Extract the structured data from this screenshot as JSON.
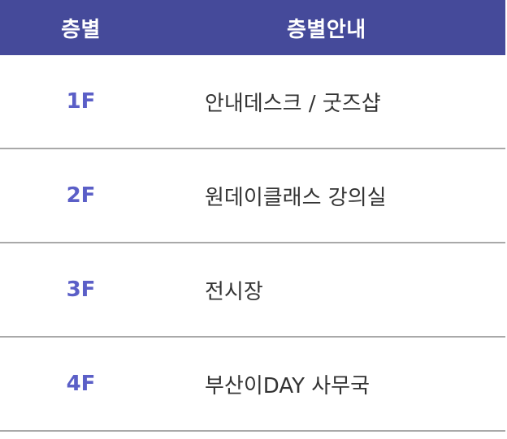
{
  "table": {
    "headers": {
      "floor": "층별",
      "guide": "층별안내"
    },
    "rows": [
      {
        "floor": "1F",
        "guide": "안내데스크 / 굿즈샵"
      },
      {
        "floor": "2F",
        "guide": "원데이클래스 강의실"
      },
      {
        "floor": "3F",
        "guide": "전시장"
      },
      {
        "floor": "4F",
        "guide": "부산이DAY 사무국"
      }
    ]
  },
  "colors": {
    "header_bg": "#454a9a",
    "header_text": "#ffffff",
    "floor_text": "#5b5fc7",
    "guide_text": "#333333",
    "divider": "#a9a9a9"
  }
}
